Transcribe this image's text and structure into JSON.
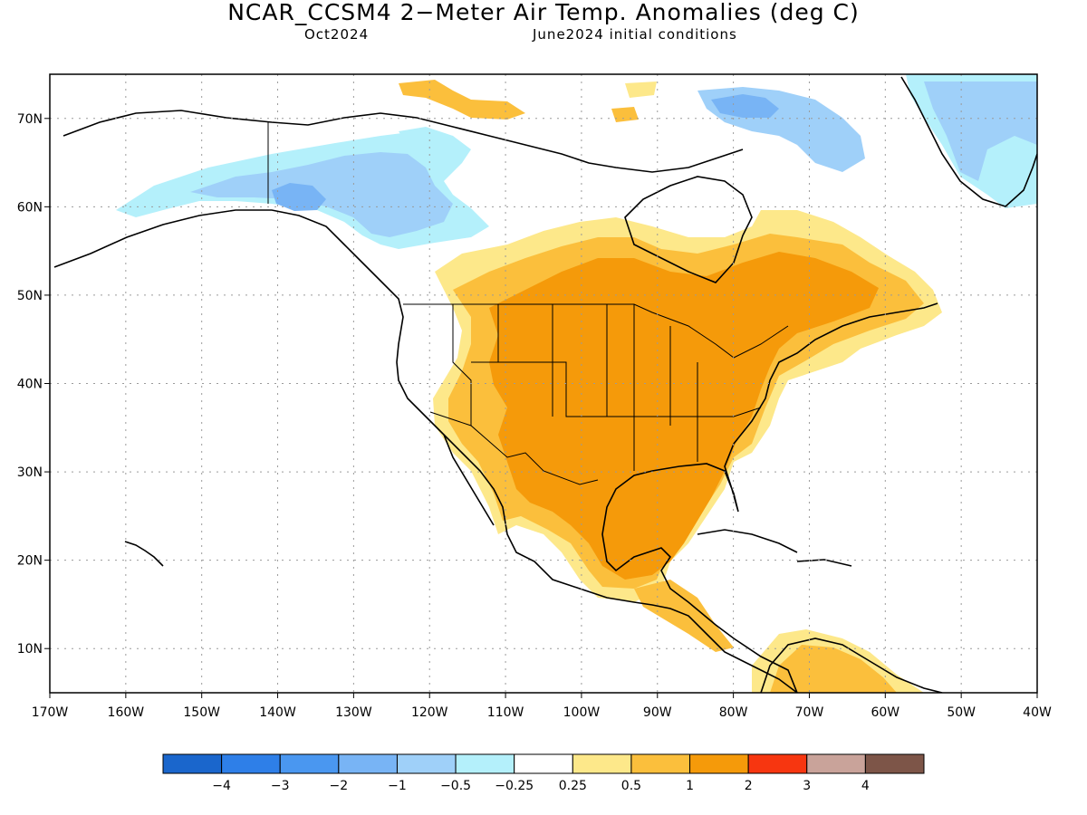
{
  "header": {
    "title": "NCAR_CCSM4 2−Meter Air Temp. Anomalies (deg C)",
    "valid_month": "Oct2024",
    "initial_conditions": "June2024 initial conditions"
  },
  "axes": {
    "lat_labels": [
      "70N",
      "60N",
      "50N",
      "40N",
      "30N",
      "20N",
      "10N"
    ],
    "lat_values": [
      70,
      60,
      50,
      40,
      30,
      20,
      10
    ],
    "lon_labels": [
      "170W",
      "160W",
      "150W",
      "140W",
      "130W",
      "120W",
      "110W",
      "100W",
      "90W",
      "80W",
      "70W",
      "60W",
      "50W",
      "40W"
    ],
    "lon_values": [
      -170,
      -160,
      -150,
      -140,
      -130,
      -120,
      -110,
      -100,
      -90,
      -80,
      -70,
      -60,
      -50,
      -40
    ],
    "lat_range": [
      5,
      75
    ],
    "lon_range": [
      -170,
      -40
    ],
    "grid": "dotted"
  },
  "colorbar": {
    "colors": [
      "#1a66cc",
      "#2e7fe8",
      "#4a97f0",
      "#78b4f5",
      "#9fd0f9",
      "#b4f0fb",
      "#ffffff",
      "#fde88a",
      "#fbbf3c",
      "#f59a0a",
      "#f73610",
      "#c9a39a",
      "#7d5548"
    ],
    "labels": [
      "−4",
      "−3",
      "−2",
      "−1",
      "−0.5",
      "−0.25",
      "0.25",
      "0.5",
      "1",
      "2",
      "3",
      "4"
    ]
  },
  "palette": {
    "orange": "#f59a0a",
    "light_orange": "#fbbf3c",
    "yellow": "#fde88a",
    "light_blue": "#b4f0fb",
    "medium_blue": "#9fd0f9",
    "blue": "#78b4f5"
  }
}
